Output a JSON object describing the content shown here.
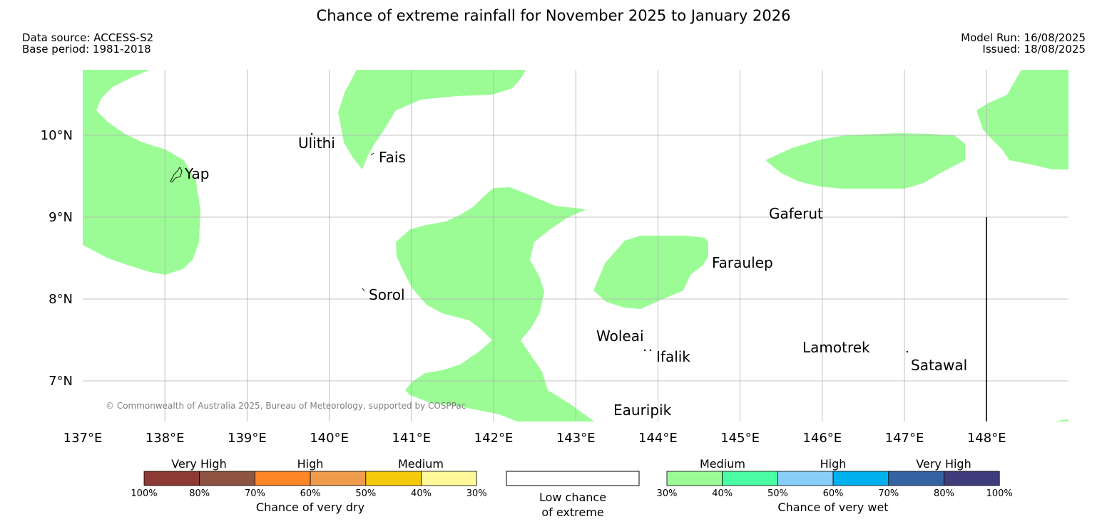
{
  "title": "Chance of extreme rainfall for November 2025 to January 2026",
  "meta": {
    "data_source": "Data source: ACCESS-S2",
    "base_period": "Base period: 1981-2018",
    "model_run": "Model Run: 16/08/2025",
    "issued": "Issued: 18/08/2025"
  },
  "map": {
    "x_ticks": [
      "137°E",
      "138°E",
      "139°E",
      "140°E",
      "141°E",
      "142°E",
      "143°E",
      "144°E",
      "145°E",
      "146°E",
      "147°E",
      "148°E"
    ],
    "y_ticks": [
      "10°N",
      "9°N",
      "8°N",
      "7°N"
    ],
    "places": [
      "Yap",
      "Ulithi",
      "Fais",
      "Gaferut",
      "Faraulep",
      "Sorol",
      "Woleai",
      "Ifalik",
      "Lamotrek",
      "Satawal",
      "Eauripik"
    ],
    "copyright": "© Commonwealth of Australia 2025, Bureau of Meteorology, supported by COSPPac",
    "shaded_category": "Medium (30%-40%) chance of very wet",
    "colors": {
      "medium_wet": "#9bfc96",
      "grid": "#b0b0b0"
    }
  },
  "legend": {
    "dry": {
      "categories": [
        "Very High",
        "High",
        "Medium"
      ],
      "percents": [
        "100%",
        "80%",
        "70%",
        "60%",
        "50%",
        "40%",
        "30%"
      ],
      "colors": [
        "#8c3a33",
        "#8e5341",
        "#fe8627",
        "#ef9c4c",
        "#f3ca0c",
        "#fff999"
      ],
      "caption": "Chance of very dry"
    },
    "low": {
      "line1": "Low chance",
      "line2": "of extreme"
    },
    "wet": {
      "categories": [
        "Medium",
        "High",
        "Very High"
      ],
      "percents": [
        "30%",
        "40%",
        "50%",
        "60%",
        "70%",
        "80%",
        "100%"
      ],
      "colors": [
        "#9bfc96",
        "#4afca4",
        "#87cefa",
        "#00b0ef",
        "#3462a3",
        "#3f3c7c"
      ],
      "caption": "Chance of very wet"
    }
  }
}
